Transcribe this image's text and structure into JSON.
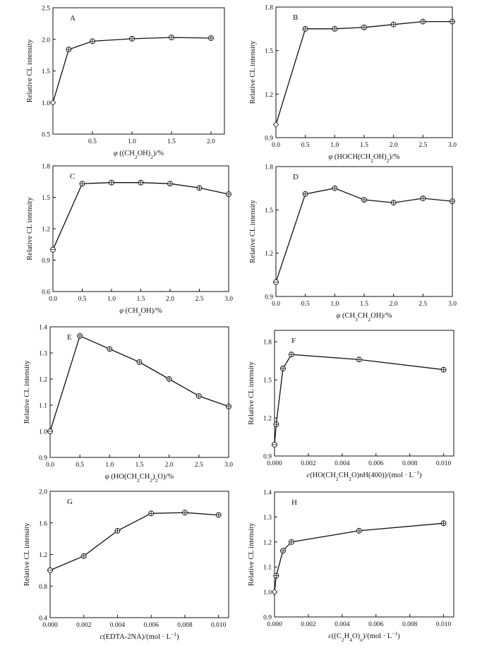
{
  "chart_data": [
    {
      "type": "line",
      "panel": "A",
      "ylabel": "Relative CL intensity",
      "xlabel_parts": [
        {
          "t": "φ",
          "i": true
        },
        {
          "t": " ((CH"
        },
        {
          "t": "2",
          "sub": true
        },
        {
          "t": "OH)"
        },
        {
          "t": "2",
          "sub": true
        },
        {
          "t": ")/%"
        }
      ],
      "xlim": [
        0,
        2.17
      ],
      "ylim": [
        0.5,
        2.5
      ],
      "xticks": [
        0.5,
        1.0,
        1.5,
        2.0
      ],
      "xtick_labels": [
        "0.5",
        "1.0",
        "1.5",
        "2.0"
      ],
      "yticks": [
        0.5,
        1.0,
        1.5,
        2.0,
        2.5
      ],
      "ytick_labels": [
        "0.5",
        "1.0",
        "1.5",
        "2.0",
        "2.5"
      ],
      "x": [
        0,
        0.2,
        0.5,
        1.0,
        1.5,
        2.0
      ],
      "y": [
        1.0,
        1.84,
        1.97,
        2.01,
        2.03,
        2.02
      ],
      "first_marker": "diamond"
    },
    {
      "type": "line",
      "panel": "B",
      "ylabel": "Relative CL intensity",
      "xlabel_parts": [
        {
          "t": "φ",
          "i": true
        },
        {
          "t": " (HOCH(CH"
        },
        {
          "t": "2",
          "sub": true
        },
        {
          "t": "OH)"
        },
        {
          "t": "2",
          "sub": true
        },
        {
          "t": ")/%"
        }
      ],
      "xlim": [
        0,
        3.0
      ],
      "ylim": [
        0.9,
        1.8
      ],
      "xticks": [
        0,
        0.5,
        1.0,
        1.5,
        2.0,
        2.5,
        3.0
      ],
      "xtick_labels": [
        "0.0",
        "0.5",
        "1.0",
        "1.5",
        "2.0",
        "2.5",
        "3.0"
      ],
      "yticks": [
        0.9,
        1.2,
        1.5,
        1.8
      ],
      "ytick_labels": [
        "0.9",
        "1.2",
        "1.5",
        "1.8"
      ],
      "x": [
        0,
        0.5,
        1.0,
        1.5,
        2.0,
        2.5,
        3.0
      ],
      "y": [
        0.99,
        1.65,
        1.65,
        1.66,
        1.68,
        1.7,
        1.7
      ],
      "first_marker": "diamond"
    },
    {
      "type": "line",
      "panel": "C",
      "ylabel": "Relative CL intensity",
      "xlabel_parts": [
        {
          "t": "φ",
          "i": true
        },
        {
          "t": " (CH"
        },
        {
          "t": "3",
          "sub": true
        },
        {
          "t": "OH)/%"
        }
      ],
      "xlim": [
        0,
        3.0
      ],
      "ylim": [
        0.6,
        1.8
      ],
      "xticks": [
        0,
        0.5,
        1.0,
        1.5,
        2.0,
        2.5,
        3.0
      ],
      "xtick_labels": [
        "0.0",
        "0.5",
        "1.0",
        "1.5",
        "2.0",
        "2.5",
        "3.0"
      ],
      "yticks": [
        0.6,
        0.9,
        1.2,
        1.5,
        1.8
      ],
      "ytick_labels": [
        "0.6",
        "0.9",
        "1.2",
        "1.5",
        "1.8"
      ],
      "x": [
        0,
        0.5,
        1.0,
        1.5,
        2.0,
        2.5,
        3.0
      ],
      "y": [
        1.0,
        1.63,
        1.64,
        1.64,
        1.63,
        1.59,
        1.53
      ],
      "first_marker": "circle"
    },
    {
      "type": "line",
      "panel": "D",
      "ylabel": "Relative CL intensity",
      "xlabel_parts": [
        {
          "t": "φ",
          "i": true
        },
        {
          "t": " (CH"
        },
        {
          "t": "3",
          "sub": true
        },
        {
          "t": "CH"
        },
        {
          "t": "2",
          "sub": true
        },
        {
          "t": "OH)/%"
        }
      ],
      "xlim": [
        0,
        3.0
      ],
      "ylim": [
        0.9,
        1.8
      ],
      "xticks": [
        0,
        0.5,
        1.0,
        1.5,
        2.0,
        2.5,
        3.0
      ],
      "xtick_labels": [
        "0.0",
        "0.5",
        "1.0",
        "1.5",
        "2.0",
        "2.5",
        "3.0"
      ],
      "yticks": [
        0.9,
        1.2,
        1.5,
        1.8
      ],
      "ytick_labels": [
        "0.9",
        "1.2",
        "1.5",
        "1.8"
      ],
      "x": [
        0,
        0.5,
        1.0,
        1.5,
        2.0,
        2.5,
        3.0
      ],
      "y": [
        1.0,
        1.61,
        1.65,
        1.57,
        1.55,
        1.58,
        1.56
      ],
      "first_marker": "circle"
    },
    {
      "type": "line",
      "panel": "E",
      "ylabel": "Relative CL intensity",
      "xlabel_parts": [
        {
          "t": "φ",
          "i": true
        },
        {
          "t": " (HO(CH"
        },
        {
          "t": "2",
          "sub": true
        },
        {
          "t": "CH"
        },
        {
          "t": "2",
          "sub": true
        },
        {
          "t": ")"
        },
        {
          "t": "2",
          "sub": true
        },
        {
          "t": "O)/%"
        }
      ],
      "xlim": [
        0,
        3.0
      ],
      "ylim": [
        0.9,
        1.4
      ],
      "xticks": [
        0,
        0.5,
        1.0,
        1.5,
        2.0,
        2.5,
        3.0
      ],
      "xtick_labels": [
        "0.0",
        "0.5",
        "1.0",
        "1.5",
        "2.0",
        "2.5",
        "3.0"
      ],
      "yticks": [
        0.9,
        1.0,
        1.1,
        1.2,
        1.3,
        1.4
      ],
      "ytick_labels": [
        "0.9",
        "1.0",
        "1.1",
        "1.2",
        "1.3",
        "1.4"
      ],
      "x": [
        0,
        0.5,
        1.0,
        1.5,
        2.0,
        2.5,
        3.0
      ],
      "y": [
        1.0,
        1.365,
        1.315,
        1.265,
        1.2,
        1.135,
        1.095
      ],
      "first_marker": "circle"
    },
    {
      "type": "line",
      "panel": "F",
      "ylabel": "Relative CL intensity",
      "xlabel_parts": [
        {
          "t": "c",
          "i": true
        },
        {
          "t": "(HO(CH"
        },
        {
          "t": "2",
          "sub": true
        },
        {
          "t": "CH"
        },
        {
          "t": "2",
          "sub": true
        },
        {
          "t": "O)nH(400))/(mol · L"
        },
        {
          "t": "−1",
          "sup": true
        },
        {
          "t": ")"
        }
      ],
      "xlim": [
        0,
        0.0106
      ],
      "ylim": [
        0.9,
        1.89
      ],
      "xticks": [
        0,
        0.002,
        0.004,
        0.006,
        0.008,
        0.01
      ],
      "xtick_labels": [
        "0.000",
        "0.002",
        "0.004",
        "0.006",
        "0.008",
        "0.010"
      ],
      "yticks": [
        0.9,
        1.2,
        1.5,
        1.8
      ],
      "ytick_labels": [
        "0.9",
        "1.2",
        "1.5",
        "1.8"
      ],
      "x": [
        0,
        0.0001,
        0.0005,
        0.001,
        0.005,
        0.01
      ],
      "y": [
        0.99,
        1.15,
        1.59,
        1.7,
        1.66,
        1.58
      ],
      "first_marker": "circle"
    },
    {
      "type": "line",
      "panel": "G",
      "ylabel": "Relative CL intensity",
      "xlabel_parts": [
        {
          "t": "c",
          "i": true
        },
        {
          "t": "(EDTA-2NA)/(mol · L"
        },
        {
          "t": "−1",
          "sup": true
        },
        {
          "t": ")"
        }
      ],
      "xlim": [
        0,
        0.0106
      ],
      "ylim": [
        0.4,
        2.0
      ],
      "xticks": [
        0,
        0.002,
        0.004,
        0.006,
        0.008,
        0.01
      ],
      "xtick_labels": [
        "0.000",
        "0.002",
        "0.004",
        "0.006",
        "0.008",
        "0.010"
      ],
      "yticks": [
        0.4,
        0.8,
        1.2,
        1.6,
        2.0
      ],
      "ytick_labels": [
        "0.4",
        "0.8",
        "1.2",
        "1.6",
        "2.0"
      ],
      "x": [
        0,
        0.002,
        0.004,
        0.006,
        0.008,
        0.01
      ],
      "y": [
        1.0,
        1.18,
        1.5,
        1.72,
        1.73,
        1.7
      ],
      "first_marker": "circle"
    },
    {
      "type": "line",
      "panel": "H",
      "ylabel": "Relative CL intensity",
      "xlabel_parts": [
        {
          "t": "c",
          "i": true
        },
        {
          "t": "((C"
        },
        {
          "t": "2",
          "sub": true
        },
        {
          "t": "H"
        },
        {
          "t": "4",
          "sub": true
        },
        {
          "t": "O)"
        },
        {
          "t": "n",
          "sub": true,
          "i": true
        },
        {
          "t": ")/(mol · L"
        },
        {
          "t": "−1",
          "sup": true
        },
        {
          "t": ")"
        }
      ],
      "xlim": [
        0,
        0.0106
      ],
      "ylim": [
        0.9,
        1.4
      ],
      "xticks": [
        0,
        0.002,
        0.004,
        0.006,
        0.008,
        0.01
      ],
      "xtick_labels": [
        "0.000",
        "0.002",
        "0.004",
        "0.006",
        "0.008",
        "0.010"
      ],
      "yticks": [
        0.9,
        1.0,
        1.1,
        1.2,
        1.3,
        1.4
      ],
      "ytick_labels": [
        "0.9",
        "1.0",
        "1.1",
        "1.2",
        "1.3",
        "1.4"
      ],
      "x": [
        0,
        0.0001,
        0.0005,
        0.001,
        0.005,
        0.01
      ],
      "y": [
        1.0,
        1.065,
        1.165,
        1.2,
        1.245,
        1.275
      ],
      "first_marker": "diamond"
    }
  ]
}
